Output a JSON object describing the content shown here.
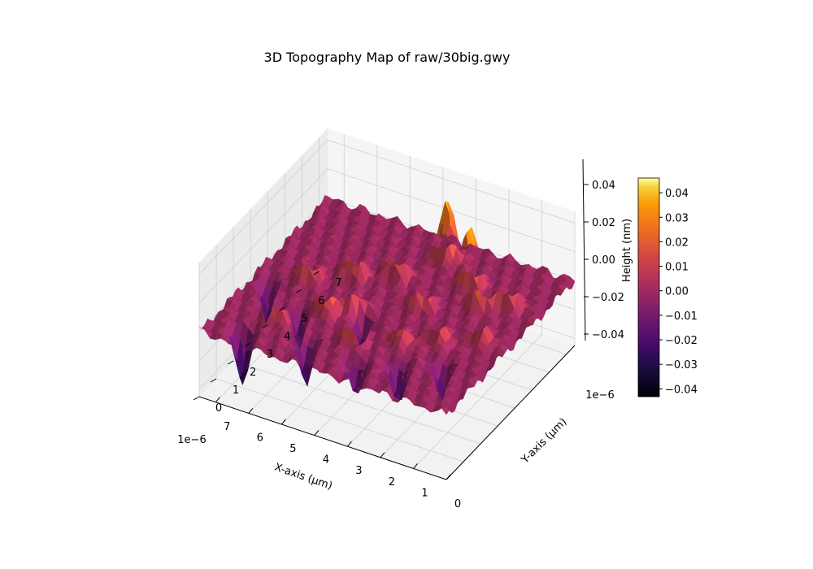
{
  "chart_data": {
    "type": "surface",
    "title": "3D Topography Map of raw/30big.gwy",
    "xlabel": "X-axis (μm)",
    "ylabel": "Y-axis (μm)",
    "zlabel": "Height (nm)",
    "x_offset_text": "1e−6",
    "y_offset_text": "1e−6",
    "xlim": [
      0,
      7.5
    ],
    "ylim": [
      0,
      7.5
    ],
    "zlim": [
      -0.045,
      0.048
    ],
    "x_ticks": [
      "0",
      "1",
      "2",
      "3",
      "4",
      "5",
      "6",
      "7"
    ],
    "y_ticks": [
      "0",
      "1",
      "2",
      "3",
      "4",
      "5",
      "6",
      "7"
    ],
    "z_ticks": [
      "−0.04",
      "−0.02",
      "0.00",
      "0.02",
      "0.04"
    ],
    "colorbar": {
      "label": "Height (nm)",
      "ticks": [
        "−0.04",
        "−0.03",
        "−0.02",
        "−0.01",
        "0.00",
        "0.01",
        "0.02",
        "0.03",
        "0.04"
      ],
      "range": [
        -0.0432,
        0.046
      ]
    },
    "colormap": "inferno",
    "grid": true,
    "surface_features": {
      "peaks": [
        {
          "x": 1.0,
          "y": 5.5,
          "h": 0.038
        },
        {
          "x": 1.6,
          "y": 5.0,
          "h": 0.03
        },
        {
          "x": 2.3,
          "y": 5.8,
          "h": 0.046
        },
        {
          "x": 3.0,
          "y": 4.2,
          "h": 0.028
        },
        {
          "x": 3.4,
          "y": 6.6,
          "h": 0.04
        },
        {
          "x": 4.2,
          "y": 5.2,
          "h": 0.032
        },
        {
          "x": 4.5,
          "y": 3.2,
          "h": 0.026
        },
        {
          "x": 5.2,
          "y": 4.6,
          "h": 0.036
        },
        {
          "x": 5.0,
          "y": 2.6,
          "h": 0.028
        },
        {
          "x": 6.2,
          "y": 3.8,
          "h": 0.03
        },
        {
          "x": 1.8,
          "y": 3.0,
          "h": 0.024
        },
        {
          "x": 2.6,
          "y": 2.4,
          "h": 0.022
        },
        {
          "x": 6.0,
          "y": 1.6,
          "h": 0.024
        },
        {
          "x": 3.8,
          "y": 1.8,
          "h": 0.026
        },
        {
          "x": 0.8,
          "y": 3.6,
          "h": 0.02
        }
      ],
      "valleys": [
        {
          "x": 6.5,
          "y": 0.6,
          "h": -0.043
        },
        {
          "x": 4.8,
          "y": 1.0,
          "h": -0.03
        },
        {
          "x": 2.2,
          "y": 1.4,
          "h": -0.028
        },
        {
          "x": 3.2,
          "y": 0.9,
          "h": -0.026
        },
        {
          "x": 5.6,
          "y": 2.2,
          "h": -0.024
        },
        {
          "x": 7.0,
          "y": 3.0,
          "h": -0.026
        },
        {
          "x": 1.2,
          "y": 2.0,
          "h": -0.022
        },
        {
          "x": 4.0,
          "y": 2.8,
          "h": -0.02
        }
      ]
    }
  }
}
